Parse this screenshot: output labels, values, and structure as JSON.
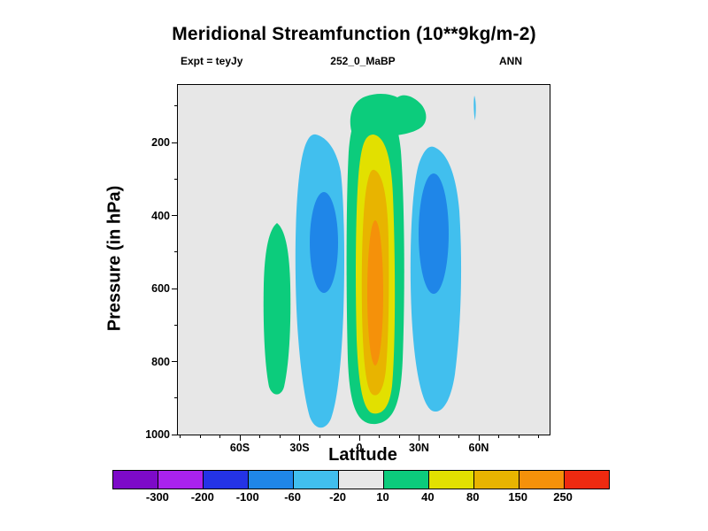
{
  "chart_data": {
    "type": "contour",
    "title": "Meridional Streamfunction (10**9kg/m-2)",
    "subtitle_left": "Expt = teyJy",
    "subtitle_center": "252_0_MaBP",
    "subtitle_right": "ANN",
    "plot_bg": "#e7e7e7",
    "x_axis": {
      "label": "Latitude",
      "ticks": [
        {
          "label": "60S",
          "deg": -60
        },
        {
          "label": "30S",
          "deg": -30
        },
        {
          "label": "0",
          "deg": 0
        },
        {
          "label": "30N",
          "deg": 30
        },
        {
          "label": "60N",
          "deg": 60
        }
      ],
      "domain_deg": [
        -93,
        93
      ],
      "minor_tick_interval_deg": 10
    },
    "y_axis": {
      "label": "Pressure (in hPa)",
      "ticks": [
        {
          "label": "200",
          "hpa": 200
        },
        {
          "label": "400",
          "hpa": 400
        },
        {
          "label": "600",
          "hpa": 600
        },
        {
          "label": "800",
          "hpa": 800
        },
        {
          "label": "1000",
          "hpa": 1000
        }
      ],
      "domain_hpa": [
        42,
        1000
      ],
      "minor_tick_interval_hpa": 100
    },
    "levels": [
      -300,
      -200,
      -100,
      -60,
      -20,
      10,
      40,
      80,
      150,
      250
    ],
    "colors": [
      "#7d0ac8",
      "#aa22ee",
      "#2433e6",
      "#1f86e8",
      "#41bfee",
      "#e7e7e7",
      "#0ccc7c",
      "#e2e000",
      "#e8b400",
      "#f5910a",
      "#ee2a10"
    ],
    "cells": [
      {
        "name": "southern-midlatitude-positive-blob",
        "sign": "positive",
        "lat_extent": [
          "48S",
          "34S"
        ],
        "pressure_extent_hPa": [
          420,
          890
        ],
        "peak_band": "10 to 40"
      },
      {
        "name": "southern-negative-cell",
        "sign": "negative",
        "lat_extent": [
          "32S",
          "7S"
        ],
        "pressure_extent_hPa": [
          175,
          990
        ],
        "peak_band": "-100 to -60"
      },
      {
        "name": "central-positive-hadley-cell",
        "sign": "positive",
        "lat_extent": [
          "7S",
          "23N"
        ],
        "pressure_extent_hPa": [
          85,
          975
        ],
        "peak_band": "150 to 250"
      },
      {
        "name": "upper-level-positive-cap",
        "sign": "positive",
        "lat_extent": [
          "6S",
          "31N"
        ],
        "pressure_extent_hPa": [
          85,
          170
        ],
        "peak_band": "10 to 40"
      },
      {
        "name": "northern-negative-cell",
        "sign": "negative",
        "lat_extent": [
          "25N",
          "52N"
        ],
        "pressure_extent_hPa": [
          205,
          945
        ],
        "peak_band": "-100 to -60"
      },
      {
        "name": "northern-upper-level-sliver",
        "sign": "negative",
        "lat_extent": [
          "57N",
          "59N"
        ],
        "pressure_extent_hPa": [
          70,
          140
        ],
        "peak_band": "-60 to -20"
      }
    ],
    "legend_position": "bottom",
    "grid": false
  }
}
